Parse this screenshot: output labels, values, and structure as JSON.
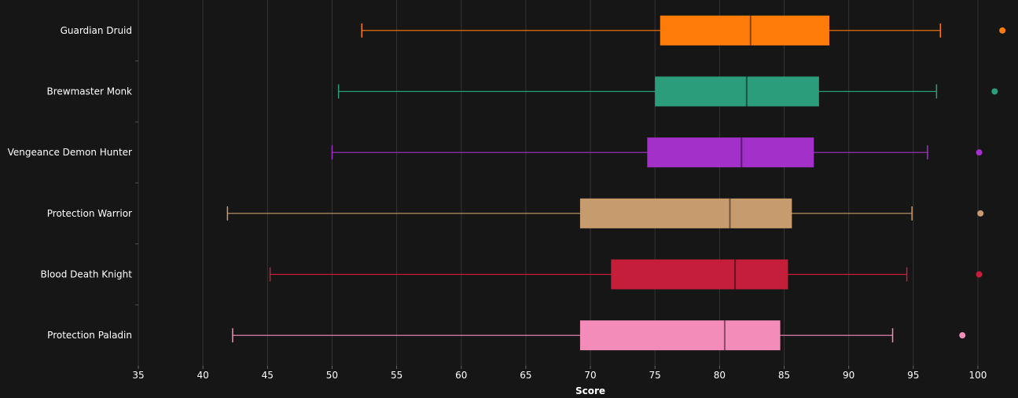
{
  "chart_data": {
    "type": "boxplot",
    "title": "",
    "xlabel": "Score",
    "ylabel": "",
    "xlim": [
      35,
      101.5
    ],
    "xticks": [
      35,
      40,
      45,
      50,
      55,
      60,
      65,
      70,
      75,
      80,
      85,
      90,
      95,
      100
    ],
    "grid": "vertical",
    "legend": "none",
    "background": "#161616",
    "categories": [
      "Guardian Druid",
      "Brewmaster Monk",
      "Vengeance Demon Hunter",
      "Protection Warrior",
      "Blood Death Knight",
      "Protection Paladin"
    ],
    "series": [
      {
        "name": "Guardian Druid",
        "color": "#ff7c0a",
        "whisker_low": 52.3,
        "q1": 75.4,
        "median": 82.4,
        "q3": 88.5,
        "whisker_high": 97.1,
        "outliers": [
          101.9
        ]
      },
      {
        "name": "Brewmaster Monk",
        "color": "#2c9d7a",
        "whisker_low": 50.5,
        "q1": 75.0,
        "median": 82.1,
        "q3": 87.7,
        "whisker_high": 96.8,
        "outliers": [
          101.3
        ]
      },
      {
        "name": "Vengeance Demon Hunter",
        "color": "#a330c9",
        "whisker_low": 50.0,
        "q1": 74.4,
        "median": 81.7,
        "q3": 87.3,
        "whisker_high": 96.1,
        "outliers": [
          100.1
        ]
      },
      {
        "name": "Protection Warrior",
        "color": "#c69b6d",
        "whisker_low": 41.9,
        "q1": 69.2,
        "median": 80.8,
        "q3": 85.6,
        "whisker_high": 94.9,
        "outliers": [
          100.2
        ]
      },
      {
        "name": "Blood Death Knight",
        "color": "#c41e3a",
        "whisker_low": 45.2,
        "q1": 71.6,
        "median": 81.2,
        "q3": 85.3,
        "whisker_high": 94.5,
        "outliers": [
          100.1
        ]
      },
      {
        "name": "Protection Paladin",
        "color": "#f48cba",
        "whisker_low": 42.3,
        "q1": 69.2,
        "median": 80.4,
        "q3": 84.7,
        "whisker_high": 93.4,
        "outliers": [
          98.8
        ]
      }
    ]
  }
}
